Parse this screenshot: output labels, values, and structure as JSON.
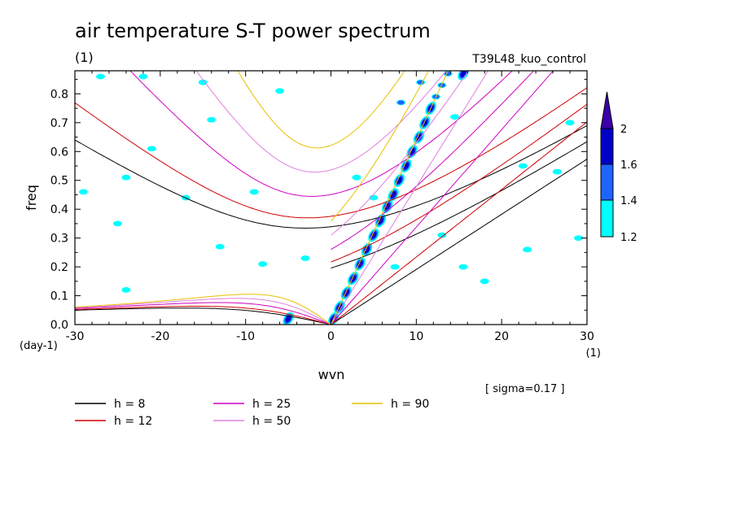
{
  "chart_data": {
    "type": "contour",
    "title": "air temperature S-T power spectrum",
    "top_left_label": "(1)",
    "top_right_label": "T39L48_kuo_control",
    "xlabel": "wvn",
    "x_unit": "(1)",
    "ylabel": "freq",
    "y_unit": "(day-1)",
    "xlim": [
      -30,
      30
    ],
    "ylim": [
      0,
      0.88
    ],
    "x_ticks": [
      -30,
      -20,
      -10,
      0,
      10,
      20,
      30
    ],
    "y_ticks": [
      0.0,
      0.1,
      0.2,
      0.3,
      0.4,
      0.5,
      0.6,
      0.7,
      0.8
    ],
    "annotation": "[ sigma=0.17 ]",
    "colorbar": {
      "levels": [
        "1.2",
        "1.4",
        "1.6",
        "2"
      ],
      "colors": [
        "#00ffff",
        "#1e64ff",
        "#0000c8",
        "#3c00aa"
      ],
      "extend": "max"
    },
    "dispersion_curves": [
      {
        "name": "h =  8",
        "h": 8,
        "color": "#000000"
      },
      {
        "name": "h = 12",
        "h": 12,
        "color": "#d00000"
      },
      {
        "name": "h = 25",
        "h": 25,
        "color": "#d000c0"
      },
      {
        "name": "h = 50",
        "h": 50,
        "color": "#e080e0"
      },
      {
        "name": "h = 90",
        "h": 90,
        "color": "#e8c000"
      }
    ],
    "spectral_peaks": [
      {
        "x": 0.3,
        "y": 0.02,
        "level": 4
      },
      {
        "x": 1.0,
        "y": 0.06,
        "level": 4
      },
      {
        "x": 1.8,
        "y": 0.11,
        "level": 4
      },
      {
        "x": 2.6,
        "y": 0.16,
        "level": 4
      },
      {
        "x": 3.4,
        "y": 0.21,
        "level": 4
      },
      {
        "x": 4.2,
        "y": 0.26,
        "level": 4
      },
      {
        "x": 5.0,
        "y": 0.31,
        "level": 4
      },
      {
        "x": 5.8,
        "y": 0.36,
        "level": 4
      },
      {
        "x": 6.6,
        "y": 0.41,
        "level": 4
      },
      {
        "x": 7.3,
        "y": 0.45,
        "level": 4
      },
      {
        "x": 8.0,
        "y": 0.5,
        "level": 3
      },
      {
        "x": 8.8,
        "y": 0.55,
        "level": 3
      },
      {
        "x": 9.5,
        "y": 0.6,
        "level": 3
      },
      {
        "x": 10.3,
        "y": 0.65,
        "level": 3
      },
      {
        "x": 11.0,
        "y": 0.7,
        "level": 3
      },
      {
        "x": 11.7,
        "y": 0.75,
        "level": 3
      },
      {
        "x": 12.3,
        "y": 0.79,
        "level": 2
      },
      {
        "x": 13.0,
        "y": 0.83,
        "level": 2
      },
      {
        "x": 13.7,
        "y": 0.87,
        "level": 2
      },
      {
        "x": 15.5,
        "y": 0.87,
        "level": 3
      },
      {
        "x": 8.2,
        "y": 0.77,
        "level": 2
      },
      {
        "x": 10.5,
        "y": 0.84,
        "level": 2
      },
      {
        "x": 14.5,
        "y": 0.72,
        "level": 1
      },
      {
        "x": -5.0,
        "y": 0.02,
        "level": 3
      },
      {
        "x": -27.0,
        "y": 0.86,
        "level": 1
      },
      {
        "x": -22.0,
        "y": 0.86,
        "level": 1
      },
      {
        "x": -15.0,
        "y": 0.84,
        "level": 1
      },
      {
        "x": -14.0,
        "y": 0.71,
        "level": 1
      },
      {
        "x": -25.0,
        "y": 0.35,
        "level": 1
      },
      {
        "x": -29.0,
        "y": 0.46,
        "level": 1
      },
      {
        "x": -21.0,
        "y": 0.61,
        "level": 1
      },
      {
        "x": -24.0,
        "y": 0.51,
        "level": 1
      },
      {
        "x": -13.0,
        "y": 0.27,
        "level": 1
      },
      {
        "x": -8.0,
        "y": 0.21,
        "level": 1
      },
      {
        "x": -9.0,
        "y": 0.46,
        "level": 1
      },
      {
        "x": -3.0,
        "y": 0.23,
        "level": 1
      },
      {
        "x": -24.0,
        "y": 0.12,
        "level": 1
      },
      {
        "x": -17.0,
        "y": 0.44,
        "level": 1
      },
      {
        "x": -6.0,
        "y": 0.81,
        "level": 1
      },
      {
        "x": 13.0,
        "y": 0.31,
        "level": 1
      },
      {
        "x": 15.5,
        "y": 0.2,
        "level": 1
      },
      {
        "x": 18.0,
        "y": 0.15,
        "level": 1
      },
      {
        "x": 23.0,
        "y": 0.26,
        "level": 1
      },
      {
        "x": 29.0,
        "y": 0.3,
        "level": 1
      },
      {
        "x": 26.5,
        "y": 0.53,
        "level": 1
      },
      {
        "x": 28.0,
        "y": 0.7,
        "level": 1
      },
      {
        "x": 5.0,
        "y": 0.44,
        "level": 1
      },
      {
        "x": 7.5,
        "y": 0.2,
        "level": 1
      },
      {
        "x": 3.0,
        "y": 0.51,
        "level": 1
      },
      {
        "x": 22.5,
        "y": 0.55,
        "level": 1
      }
    ]
  },
  "legend": {
    "entries": [
      {
        "label": "h =  8",
        "color": "#000000",
        "col": 0,
        "row": 0
      },
      {
        "label": "h = 12",
        "color": "#d00000",
        "col": 0,
        "row": 1
      },
      {
        "label": "h = 25",
        "color": "#d000c0",
        "col": 1,
        "row": 0
      },
      {
        "label": "h = 50",
        "color": "#e080e0",
        "col": 1,
        "row": 1
      },
      {
        "label": "h = 90",
        "color": "#e8c000",
        "col": 2,
        "row": 0
      }
    ]
  }
}
